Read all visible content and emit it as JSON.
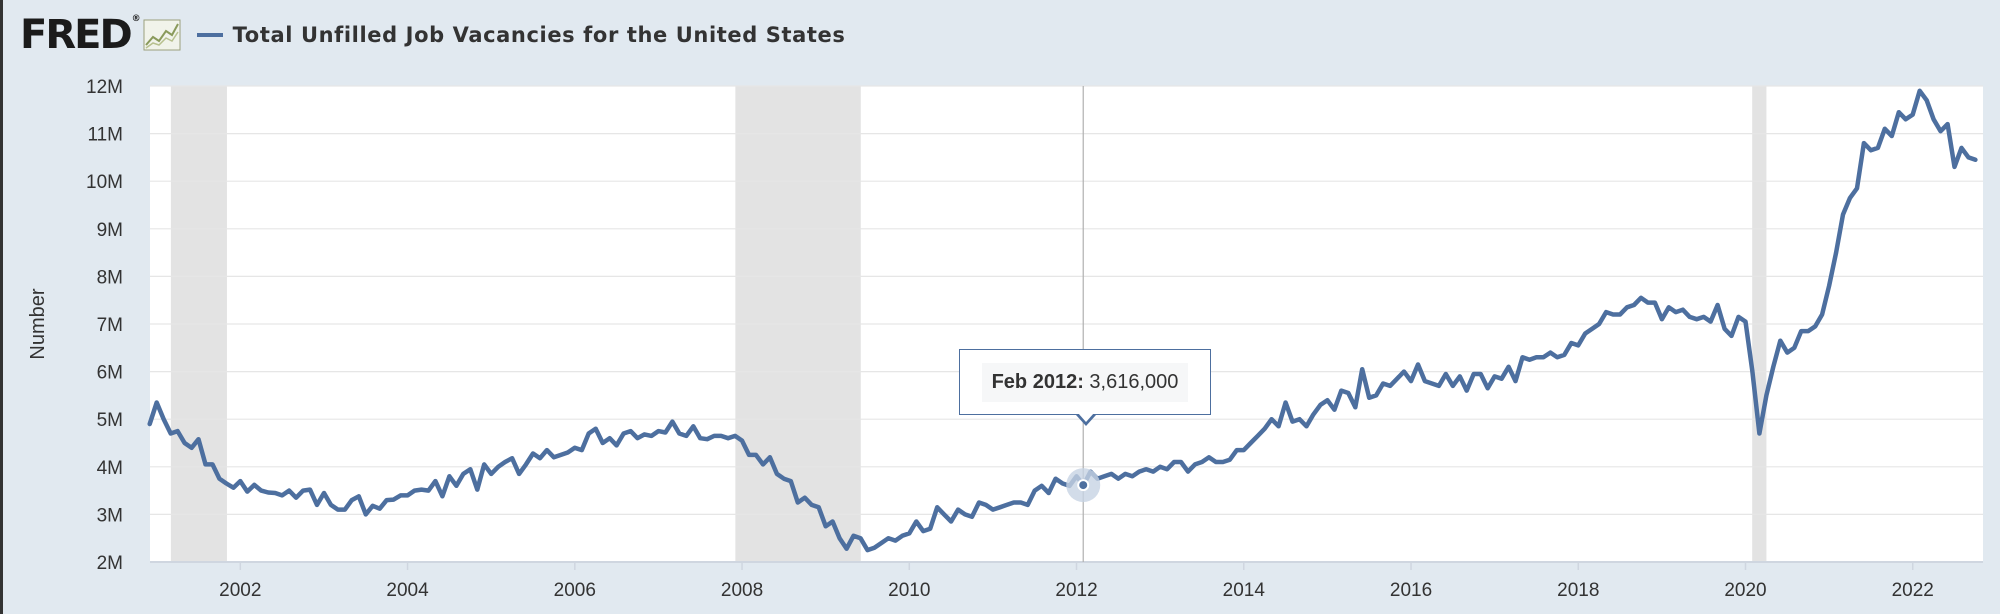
{
  "header": {
    "logo": "FRED",
    "logo_mark": "®"
  },
  "colors": {
    "series": "#4d6f9f",
    "recession": "#e3e3e3",
    "grid": "#e6e6e6",
    "background": "#e1e9f0"
  },
  "tooltip": {
    "date": "Feb 2012:",
    "value": "3,616,000"
  },
  "chart_data": {
    "type": "line",
    "title": "Total Unfilled Job Vacancies for the United States",
    "xlabel": "",
    "ylabel": "Number",
    "xlim": [
      2000.92,
      2022.84
    ],
    "ylim": [
      2000000,
      12000000
    ],
    "yticks": [
      2000000,
      3000000,
      4000000,
      5000000,
      6000000,
      7000000,
      8000000,
      9000000,
      10000000,
      11000000,
      12000000
    ],
    "ytick_labels": [
      "2M",
      "3M",
      "4M",
      "5M",
      "6M",
      "7M",
      "8M",
      "9M",
      "10M",
      "11M",
      "12M"
    ],
    "xticks": [
      2002,
      2004,
      2006,
      2008,
      2010,
      2012,
      2014,
      2016,
      2018,
      2020,
      2022
    ],
    "xtick_labels": [
      "2002",
      "2004",
      "2006",
      "2008",
      "2010",
      "2012",
      "2014",
      "2016",
      "2018",
      "2020",
      "2022"
    ],
    "grid": true,
    "recessions": [
      {
        "start": 2001.17,
        "end": 2001.84
      },
      {
        "start": 2007.92,
        "end": 2009.42
      },
      {
        "start": 2020.08,
        "end": 2020.25
      }
    ],
    "highlight": {
      "x": 2012.08,
      "y": 3616000
    },
    "series": [
      {
        "name": "Total Unfilled Job Vacancies for the United States",
        "start": 2000.917,
        "step": 0.08333,
        "values": [
          4900000,
          5350000,
          5000000,
          4700000,
          4750000,
          4500000,
          4400000,
          4580000,
          4050000,
          4050000,
          3750000,
          3650000,
          3560000,
          3700000,
          3480000,
          3620000,
          3500000,
          3460000,
          3450000,
          3400000,
          3500000,
          3350000,
          3500000,
          3520000,
          3200000,
          3450000,
          3200000,
          3100000,
          3100000,
          3300000,
          3380000,
          3000000,
          3180000,
          3120000,
          3300000,
          3310000,
          3400000,
          3400000,
          3500000,
          3520000,
          3500000,
          3700000,
          3380000,
          3800000,
          3600000,
          3850000,
          3950000,
          3520000,
          4050000,
          3850000,
          4000000,
          4100000,
          4180000,
          3850000,
          4050000,
          4280000,
          4180000,
          4350000,
          4200000,
          4250000,
          4300000,
          4400000,
          4350000,
          4700000,
          4800000,
          4500000,
          4600000,
          4450000,
          4700000,
          4750000,
          4600000,
          4680000,
          4650000,
          4750000,
          4720000,
          4950000,
          4700000,
          4650000,
          4850000,
          4600000,
          4580000,
          4650000,
          4650000,
          4600000,
          4650000,
          4550000,
          4250000,
          4250000,
          4050000,
          4200000,
          3850000,
          3750000,
          3700000,
          3250000,
          3350000,
          3200000,
          3150000,
          2750000,
          2850000,
          2500000,
          2280000,
          2550000,
          2500000,
          2250000,
          2300000,
          2400000,
          2500000,
          2450000,
          2550000,
          2600000,
          2850000,
          2650000,
          2700000,
          3150000,
          3000000,
          2850000,
          3100000,
          3000000,
          2950000,
          3250000,
          3200000,
          3100000,
          3150000,
          3200000,
          3250000,
          3250000,
          3200000,
          3500000,
          3600000,
          3450000,
          3750000,
          3650000,
          3600000,
          3800000,
          3616000,
          3900000,
          3750000,
          3800000,
          3850000,
          3750000,
          3850000,
          3800000,
          3900000,
          3950000,
          3900000,
          4000000,
          3950000,
          4100000,
          4100000,
          3900000,
          4050000,
          4100000,
          4200000,
          4100000,
          4100000,
          4150000,
          4350000,
          4350000,
          4500000,
          4650000,
          4800000,
          5000000,
          4850000,
          5350000,
          4950000,
          5000000,
          4850000,
          5100000,
          5300000,
          5400000,
          5200000,
          5600000,
          5550000,
          5250000,
          6050000,
          5450000,
          5500000,
          5750000,
          5700000,
          5850000,
          6000000,
          5800000,
          6150000,
          5800000,
          5750000,
          5700000,
          5950000,
          5700000,
          5900000,
          5600000,
          5950000,
          5950000,
          5650000,
          5900000,
          5850000,
          6100000,
          5800000,
          6300000,
          6250000,
          6300000,
          6300000,
          6400000,
          6300000,
          6350000,
          6600000,
          6550000,
          6800000,
          6900000,
          7000000,
          7250000,
          7200000,
          7200000,
          7350000,
          7400000,
          7550000,
          7450000,
          7450000,
          7100000,
          7350000,
          7250000,
          7300000,
          7150000,
          7100000,
          7150000,
          7050000,
          7400000,
          6900000,
          6750000,
          7150000,
          7050000,
          6000000,
          4700000,
          5500000,
          6100000,
          6650000,
          6400000,
          6500000,
          6850000,
          6850000,
          6950000,
          7200000,
          7800000,
          8500000,
          9300000,
          9650000,
          9850000,
          10800000,
          10650000,
          10700000,
          11100000,
          10950000,
          11450000,
          11300000,
          11400000,
          11900000,
          11700000,
          11300000,
          11050000,
          11200000,
          10300000,
          10700000,
          10500000,
          10450000
        ]
      }
    ]
  }
}
